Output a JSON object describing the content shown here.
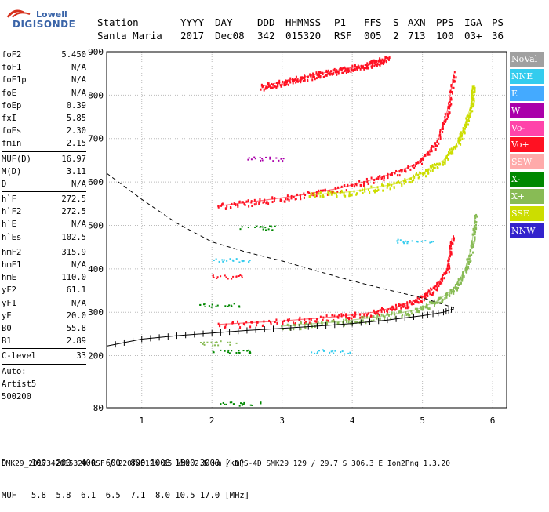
{
  "logo": {
    "line1": "Lowell",
    "line2": "DIGISONDE"
  },
  "header": {
    "labels": [
      "Station",
      "YYYY",
      "DAY",
      "DDD",
      "HHMMSS",
      "P1",
      "FFS",
      "S",
      "AXN",
      "PPS",
      "IGA",
      "PS"
    ],
    "values": [
      "Santa Maria",
      "2017",
      "Dec08",
      "342",
      "015320",
      "RSF",
      "005",
      "2",
      "713",
      "100",
      "03+",
      "36"
    ]
  },
  "params": {
    "group1": [
      {
        "k": "foF2",
        "v": "5.450"
      },
      {
        "k": "foF1",
        "v": "N/A"
      },
      {
        "k": "foF1p",
        "v": "N/A"
      },
      {
        "k": "foE",
        "v": "N/A"
      },
      {
        "k": "foEp",
        "v": "0.39"
      },
      {
        "k": "fxI",
        "v": "5.85"
      },
      {
        "k": "foEs",
        "v": "2.30"
      },
      {
        "k": "fmin",
        "v": "2.15"
      }
    ],
    "group2": [
      {
        "k": "MUF(D)",
        "v": "16.97"
      },
      {
        "k": "M(D)",
        "v": "3.11"
      },
      {
        "k": "D",
        "v": "N/A"
      }
    ],
    "group3": [
      {
        "k": "h`F",
        "v": "272.5"
      },
      {
        "k": "h`F2",
        "v": "272.5"
      },
      {
        "k": "h`E",
        "v": "N/A"
      },
      {
        "k": "h`Es",
        "v": "102.5"
      }
    ],
    "group4": [
      {
        "k": "hmF2",
        "v": "315.9"
      },
      {
        "k": "hmF1",
        "v": "N/A"
      },
      {
        "k": "hmE",
        "v": "110.0"
      },
      {
        "k": "yF2",
        "v": "61.1"
      },
      {
        "k": "yF1",
        "v": "N/A"
      },
      {
        "k": "yE",
        "v": "20.0"
      },
      {
        "k": "B0",
        "v": "55.8"
      },
      {
        "k": "B1",
        "v": "2.89"
      }
    ],
    "group5": [
      {
        "k": "C-level",
        "v": "33"
      }
    ],
    "auto": [
      "Auto:",
      "Artist5",
      "500200"
    ]
  },
  "legend": [
    {
      "label": "NoVal",
      "color": "#a0a0a0"
    },
    {
      "label": "NNE",
      "color": "#33ccee"
    },
    {
      "label": "E",
      "color": "#44aaff"
    },
    {
      "label": "W",
      "color": "#aa00aa"
    },
    {
      "label": "Vo-",
      "color": "#ff44aa"
    },
    {
      "label": "Vo+",
      "color": "#ff1122"
    },
    {
      "label": "SSW",
      "color": "#ffaaaa"
    },
    {
      "label": "X-",
      "color": "#008800"
    },
    {
      "label": "X+",
      "color": "#88bb55"
    },
    {
      "label": "SSE",
      "color": "#ccdd00"
    },
    {
      "label": "NNW",
      "color": "#3322cc"
    }
  ],
  "bottom": {
    "line1": "D     100  200  400  600  800 1000 1500 3000 [km]",
    "line2": "MUF   5.8  5.8  6.1  6.5  7.1  8.0 10.5 17.0 [MHz]"
  },
  "footer": "SMK29_2017342015320.RSF / 220fx512h 25 kHz 2.5 km / DPS-4D SMK29 129 / 29.7 S 306.3 E Ion2Png 1.3.20",
  "chart_data": {
    "type": "scatter",
    "xlim": [
      0.5,
      6.2
    ],
    "ylim": [
      80,
      900
    ],
    "xticks": [
      1,
      2,
      3,
      4,
      5,
      6
    ],
    "yticks": [
      80,
      200,
      300,
      400,
      500,
      600,
      700,
      800,
      900
    ],
    "grid": true,
    "series": [
      {
        "name": "Vo+",
        "color": "#ff1122",
        "x": [
          2.1,
          3.0,
          3.8,
          4.3,
          4.7,
          5.0,
          5.2,
          5.35,
          5.42
        ],
        "y": [
          272,
          280,
          290,
          300,
          315,
          335,
          360,
          400,
          470
        ]
      },
      {
        "name": "X+",
        "color": "#88bb55",
        "x": [
          3.0,
          3.8,
          4.4,
          4.9,
          5.2,
          5.45,
          5.6,
          5.7,
          5.75
        ],
        "y": [
          268,
          278,
          290,
          305,
          325,
          355,
          395,
          450,
          520
        ]
      },
      {
        "name": "Vo+",
        "color": "#ff1122",
        "x": [
          2.1,
          2.6,
          3.2,
          3.8,
          4.4,
          4.9,
          5.2,
          5.35,
          5.45
        ],
        "y": [
          545,
          555,
          568,
          585,
          610,
          640,
          690,
          760,
          850
        ]
      },
      {
        "name": "SSE",
        "color": "#ccdd00",
        "x": [
          3.4,
          4.0,
          4.6,
          5.0,
          5.3,
          5.5,
          5.6,
          5.7,
          5.72
        ],
        "y": [
          570,
          578,
          595,
          620,
          650,
          690,
          730,
          780,
          820
        ]
      },
      {
        "name": "Vo+",
        "color": "#ff1122",
        "x": [
          2.7,
          3.2,
          3.7,
          4.2,
          4.5
        ],
        "y": [
          820,
          838,
          855,
          870,
          885
        ]
      }
    ]
  }
}
